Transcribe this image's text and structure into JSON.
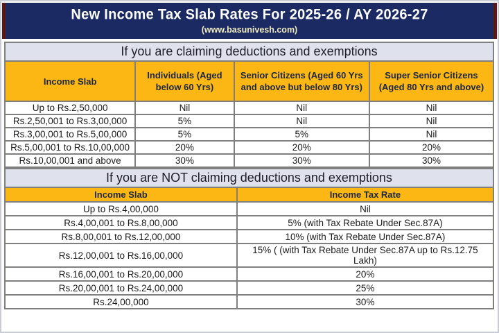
{
  "header": {
    "title": "New Income Tax Slab Rates For 2025-26 / AY 2026-27",
    "subtitle": "(www.basunivesh.com)"
  },
  "colors": {
    "banner_navy": "#1b2a63",
    "banner_edge_maroon": "#5e1818",
    "header_gold": "#fdb714",
    "band_lavender": "#dfe1ec",
    "grid_border": "#7f7f7f",
    "frame_gray": "#c9cdd3",
    "subtitle_text": "#f0ebbe",
    "header_text": "#1c2746"
  },
  "section1": {
    "heading": "If you are claiming deductions and exemptions",
    "columns": [
      "Income Slab",
      "Individuals (Aged below 60 Yrs)",
      "Senior Citizens (Aged 60 Yrs and above but below 80 Yrs)",
      "Super Senior Citizens (Aged 80 Yrs and above)"
    ],
    "rows": [
      [
        "Up to Rs.2,50,000",
        "Nil",
        "Nil",
        "Nil"
      ],
      [
        "Rs.2,50,001 to Rs.3,00,000",
        "5%",
        "Nil",
        "Nil"
      ],
      [
        "Rs.3,00,001 to Rs.5,00,000",
        "5%",
        "5%",
        "Nil"
      ],
      [
        "Rs.5,00,001 to Rs.10,00,000",
        "20%",
        "20%",
        "20%"
      ],
      [
        "Rs.10,00,001 and above",
        "30%",
        "30%",
        "30%"
      ]
    ]
  },
  "section2": {
    "heading": "If you are NOT claiming deductions and exemptions",
    "columns": [
      "Income Slab",
      "Income Tax Rate"
    ],
    "rows": [
      [
        "Up to Rs.4,00,000",
        "Nil"
      ],
      [
        "Rs.4,00,001 to Rs.8,00,000",
        "5% (with Tax Rebate Under Sec.87A)"
      ],
      [
        "Rs.8,00,001 to Rs.12,00,000",
        "10% (with Tax Rebate Under Sec.87A)"
      ],
      [
        "Rs.12,00,001 to Rs.16,00,000",
        "15% ( (with Tax Rebate Under Sec.87A up to Rs.12.75 Lakh)"
      ],
      [
        "Rs.16,00,001 to Rs.20,00,000",
        "20%"
      ],
      [
        "Rs.20,00,001 to Rs.24,00,000",
        "25%"
      ],
      [
        "Rs.24,00,000",
        "30%"
      ]
    ]
  }
}
